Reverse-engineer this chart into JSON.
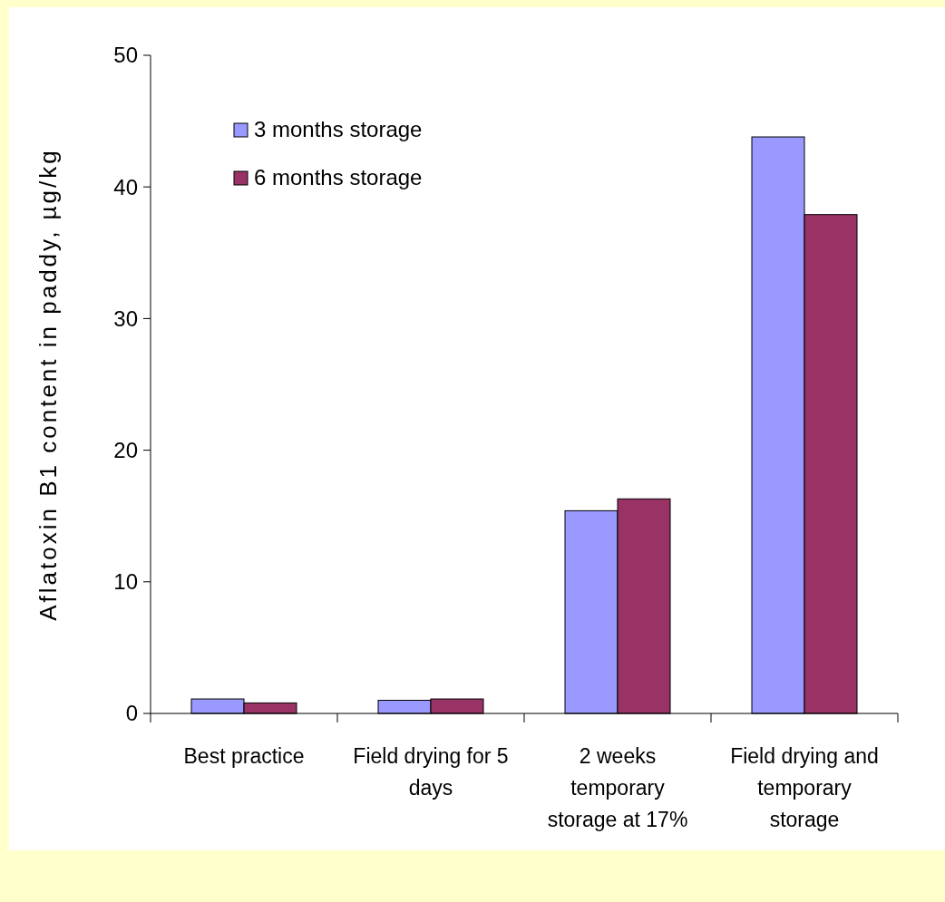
{
  "chart_data": {
    "type": "bar",
    "ylabel": "Aflatoxin B1 content in paddy, µg/kg",
    "categories": [
      "Best practice",
      "Field drying for 5 days",
      "2 weeks temporary storage at 17%",
      "Field drying and temporary storage"
    ],
    "series": [
      {
        "name": "3 months storage",
        "color": "#9999ff",
        "values": [
          1.1,
          1.0,
          15.4,
          43.8
        ]
      },
      {
        "name": "6 months storage",
        "color": "#993366",
        "values": [
          0.8,
          1.1,
          16.3,
          37.9
        ]
      }
    ],
    "ylim": [
      0,
      50
    ],
    "yticks": [
      0,
      10,
      20,
      30,
      40,
      50
    ],
    "grid": false,
    "legend": "top left"
  }
}
